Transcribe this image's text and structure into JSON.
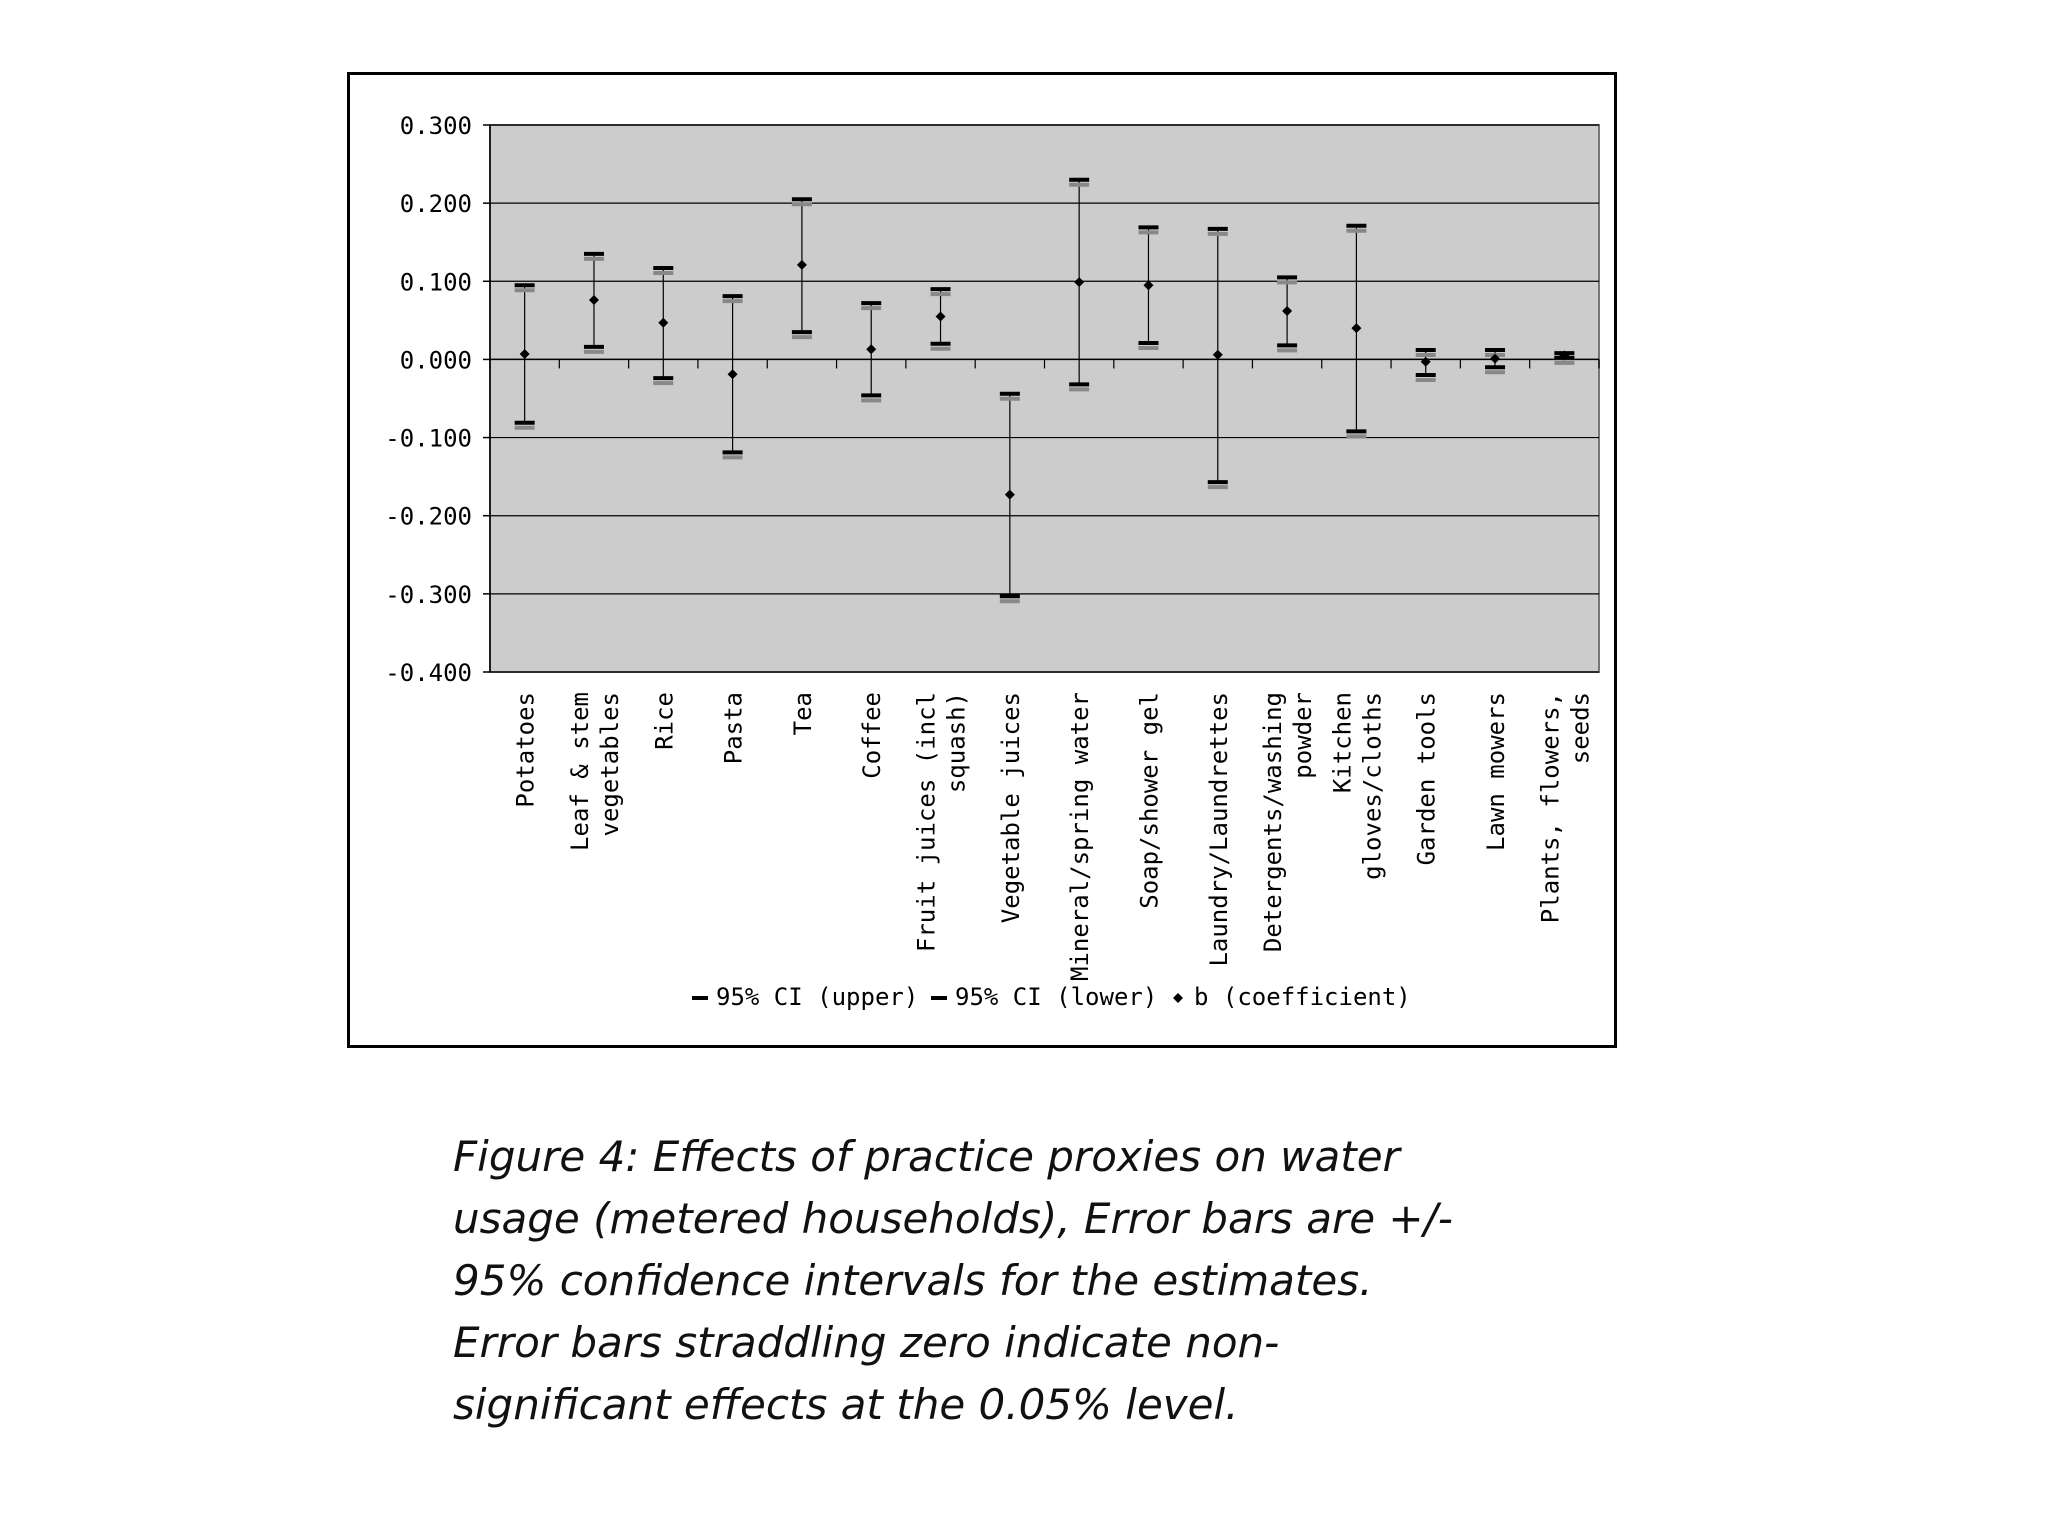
{
  "chart_data": {
    "type": "errorbar",
    "categories": [
      [
        "Potatoes"
      ],
      [
        "Leaf & stem",
        "vegetables"
      ],
      [
        "Rice"
      ],
      [
        "Pasta"
      ],
      [
        "Tea"
      ],
      [
        "Coffee"
      ],
      [
        "Fruit juices (incl",
        "squash)"
      ],
      [
        "Vegetable juices"
      ],
      [
        "Mineral/spring water"
      ],
      [
        "Soap/shower gel"
      ],
      [
        "Laundry/Laundrettes"
      ],
      [
        "Detergents/washing",
        "powder"
      ],
      [
        "Kitchen",
        "gloves/cloths"
      ],
      [
        "Garden tools"
      ],
      [
        "Lawn mowers"
      ],
      [
        "Plants, flowers,",
        "seeds"
      ]
    ],
    "series": [
      {
        "name": "95% CI (upper)",
        "values": [
          0.095,
          0.135,
          0.117,
          0.081,
          0.205,
          0.072,
          0.09,
          -0.044,
          0.23,
          0.169,
          0.167,
          0.105,
          0.171,
          0.012,
          0.012,
          0.008
        ]
      },
      {
        "name": "95% CI (lower)",
        "values": [
          -0.081,
          0.016,
          -0.024,
          -0.119,
          0.035,
          -0.046,
          0.02,
          -0.303,
          -0.032,
          0.021,
          -0.157,
          0.018,
          -0.092,
          -0.02,
          -0.01,
          0.002
        ]
      },
      {
        "name": "b (coefficient)",
        "values": [
          0.007,
          0.076,
          0.047,
          -0.019,
          0.121,
          0.013,
          0.055,
          -0.173,
          0.099,
          0.095,
          0.006,
          0.062,
          0.04,
          -0.003,
          0.001,
          0.005
        ]
      }
    ],
    "title": "",
    "xlabel": "",
    "ylabel": "",
    "ylim": [
      -0.4,
      0.3
    ],
    "yticks": [
      "0.300",
      "0.200",
      "0.100",
      "0.000",
      "-0.100",
      "-0.200",
      "-0.300",
      "-0.400"
    ],
    "ytick_values": [
      0.3,
      0.2,
      0.1,
      0.0,
      -0.1,
      -0.2,
      -0.3,
      -0.4
    ],
    "grid": true,
    "legend": "bottom",
    "colors": {
      "plot_bg": "#cccccc",
      "marks": "#000000",
      "ci_shadow": "#888888"
    }
  },
  "legend": {
    "upper_label": "95% CI (upper)",
    "lower_label": "95% CI (lower)",
    "coef_label": "b (coefficient)"
  },
  "caption": {
    "lines": [
      "Figure 4: Effects of practice proxies on water",
      "usage (metered households), Error bars are +/-",
      "95% confidence intervals for the estimates.",
      "Error bars straddling zero indicate non-",
      "significant effects at the 0.05% level."
    ]
  }
}
